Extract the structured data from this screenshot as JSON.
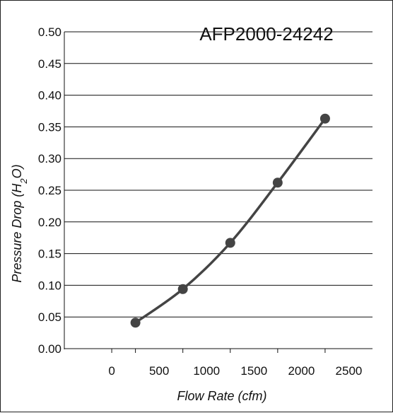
{
  "chart_data": {
    "type": "line",
    "title": "AFP2000-24242",
    "xlabel": "Flow Rate (cfm)",
    "ylabel": {
      "prefix": "Pressure Drop (H",
      "subscript": "2",
      "suffix": "O)"
    },
    "xlim": [
      -500,
      2750
    ],
    "ylim": [
      0,
      0.5
    ],
    "x_ticks": [
      "0",
      "500",
      "1000",
      "1500",
      "2000",
      "2500"
    ],
    "x_tick_values": [
      0,
      500,
      1000,
      1500,
      2000,
      2500
    ],
    "y_ticks": [
      "0.00",
      "0.05",
      "0.10",
      "0.15",
      "0.20",
      "0.25",
      "0.30",
      "0.35",
      "0.40",
      "0.45",
      "0.50"
    ],
    "y_tick_values": [
      0,
      0.05,
      0.1,
      0.15,
      0.2,
      0.25,
      0.3,
      0.35,
      0.4,
      0.45,
      0.5
    ],
    "grid": "horizontal",
    "series": [
      {
        "x": [
          250,
          750,
          1250,
          1750,
          2250
        ],
        "y": [
          0.041,
          0.094,
          0.167,
          0.262,
          0.363
        ],
        "markers": true,
        "smooth": true
      }
    ],
    "colors": {
      "line": "#444444",
      "marker": "#444444",
      "grid": "#111111",
      "axis": "#111111"
    }
  }
}
